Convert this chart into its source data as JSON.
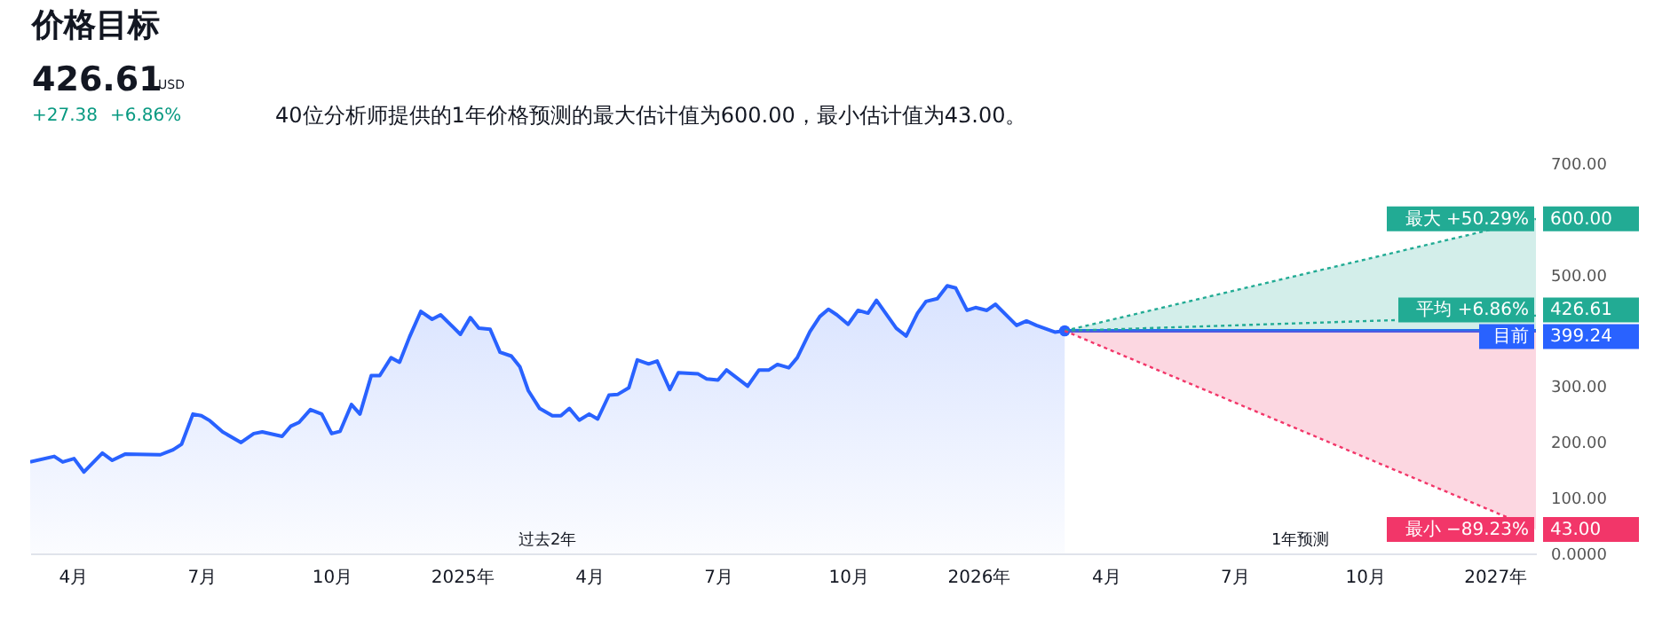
{
  "chart_data": {
    "type": "line",
    "title": "价格目标",
    "subtitle": "40位分析师提供的1年价格预测的最大估计值为600.00，最小估计值为43.00。",
    "annotations": [
      "426.61",
      "USD",
      "+27.38",
      "+6.86%",
      "过去2年",
      "1年预测"
    ],
    "xlim": [
      "2024-03-02",
      "2027-01-30"
    ],
    "xticks": [
      {
        "value": "2024-04-01",
        "label": "4月"
      },
      {
        "value": "2024-07-01",
        "label": "7月"
      },
      {
        "value": "2024-10-01",
        "label": "10月"
      },
      {
        "value": "2025-01-01",
        "label": "2025年"
      },
      {
        "value": "2025-04-01",
        "label": "4月"
      },
      {
        "value": "2025-07-01",
        "label": "7月"
      },
      {
        "value": "2025-10-01",
        "label": "10月"
      },
      {
        "value": "2026-01-01",
        "label": "2026年"
      },
      {
        "value": "2026-04-01",
        "label": "4月"
      },
      {
        "value": "2026-07-01",
        "label": "7月"
      },
      {
        "value": "2026-10-01",
        "label": "10月"
      },
      {
        "value": "2027-01-01",
        "label": "2027年"
      }
    ],
    "ylim": [
      0,
      700
    ],
    "yticks": [
      {
        "value": 0,
        "label": "0.0000"
      },
      {
        "value": 100,
        "label": "100.00"
      },
      {
        "value": 200,
        "label": "200.00"
      },
      {
        "value": 300,
        "label": "300.00"
      },
      {
        "value": 500,
        "label": "500.00"
      },
      {
        "value": 700,
        "label": "700.00"
      }
    ],
    "series": [
      {
        "type": "area",
        "color": "#2962ff",
        "x": [
          "2024-03-02",
          "2024-03-19",
          "2024-03-25",
          "2024-04-02",
          "2024-04-09",
          "2024-04-22",
          "2024-04-29",
          "2024-05-08",
          "2024-06-02",
          "2024-06-11",
          "2024-06-17",
          "2024-06-25",
          "2024-07-01",
          "2024-07-07",
          "2024-07-16",
          "2024-07-29",
          "2024-08-07",
          "2024-08-13",
          "2024-08-27",
          "2024-09-02",
          "2024-09-08",
          "2024-09-16",
          "2024-09-24",
          "2024-10-01",
          "2024-10-07",
          "2024-10-15",
          "2024-10-21",
          "2024-10-29",
          "2024-11-04",
          "2024-11-12",
          "2024-11-18",
          "2024-11-25",
          "2024-12-03",
          "2024-12-11",
          "2024-12-17",
          "2024-12-31",
          "2025-01-07",
          "2025-01-13",
          "2025-01-21",
          "2025-01-28",
          "2025-02-05",
          "2025-02-11",
          "2025-02-17",
          "2025-02-25",
          "2025-03-06",
          "2025-03-12",
          "2025-03-18",
          "2025-03-25",
          "2025-04-01",
          "2025-04-07",
          "2025-04-15",
          "2025-04-21",
          "2025-04-29",
          "2025-05-05",
          "2025-05-13",
          "2025-05-19",
          "2025-05-28",
          "2025-06-03",
          "2025-06-17",
          "2025-06-23",
          "2025-07-01",
          "2025-07-07",
          "2025-07-22",
          "2025-07-30",
          "2025-08-06",
          "2025-08-12",
          "2025-08-20",
          "2025-08-26",
          "2025-09-04",
          "2025-09-11",
          "2025-09-17",
          "2025-09-23",
          "2025-10-01",
          "2025-10-08",
          "2025-10-15",
          "2025-10-21",
          "2025-11-04",
          "2025-11-11",
          "2025-11-19",
          "2025-11-25",
          "2025-12-03",
          "2025-12-10",
          "2025-12-16",
          "2025-12-24",
          "2025-12-30",
          "2026-01-07",
          "2026-01-13",
          "2026-01-28",
          "2026-02-04",
          "2026-02-11",
          "2026-02-24",
          "2026-03-03"
        ],
        "values": [
          164,
          174,
          164,
          170,
          146,
          180,
          167,
          178,
          177,
          186,
          196,
          250,
          247,
          238,
          218,
          199,
          215,
          218,
          210,
          228,
          235,
          258,
          250,
          215,
          219,
          267,
          250,
          319,
          319,
          351,
          343,
          388,
          434,
          420,
          428,
          393,
          423,
          404,
          402,
          361,
          354,
          335,
          292,
          260,
          247,
          247,
          260,
          239,
          250,
          241,
          284,
          285,
          297,
          347,
          340,
          345,
          294,
          324,
          322,
          313,
          311,
          329,
          300,
          329,
          329,
          339,
          333,
          351,
          398,
          425,
          438,
          428,
          411,
          436,
          431,
          454,
          404,
          390,
          431,
          452,
          457,
          480,
          476,
          436,
          441,
          436,
          447,
          409,
          417,
          409,
          397,
          399.24
        ]
      },
      {
        "type": "scatter",
        "color": "#2962ff",
        "marker": "circle",
        "x": [
          "2026-03-03"
        ],
        "values": [
          399.24
        ]
      },
      {
        "name": "目前",
        "color": "#2962ff",
        "line_style": "solid",
        "x": [
          "2026-03-03",
          "2027-01-30"
        ],
        "values": [
          399.24,
          399.24
        ],
        "value_labels": [
          null,
          "399.24"
        ]
      },
      {
        "type": "area",
        "name": "最大 +50.29%",
        "color": "#22ab94",
        "line_style": "dotted",
        "x": [
          "2026-03-03",
          "2027-01-30"
        ],
        "values": [
          399.24,
          600
        ],
        "value_labels": [
          null,
          "600.00"
        ]
      },
      {
        "name": "平均 +6.86%",
        "color": "#22ab94",
        "line_style": "dotted",
        "x": [
          "2026-03-03",
          "2027-01-30"
        ],
        "values": [
          399.24,
          426.61
        ],
        "value_labels": [
          null,
          "426.61"
        ]
      },
      {
        "type": "area",
        "name": "最小 −89.23%",
        "color": "#f23669",
        "line_style": "dotted",
        "x": [
          "2026-03-03",
          "2027-01-30"
        ],
        "values": [
          399.24,
          43
        ],
        "value_labels": [
          null,
          "43.00"
        ]
      }
    ]
  }
}
